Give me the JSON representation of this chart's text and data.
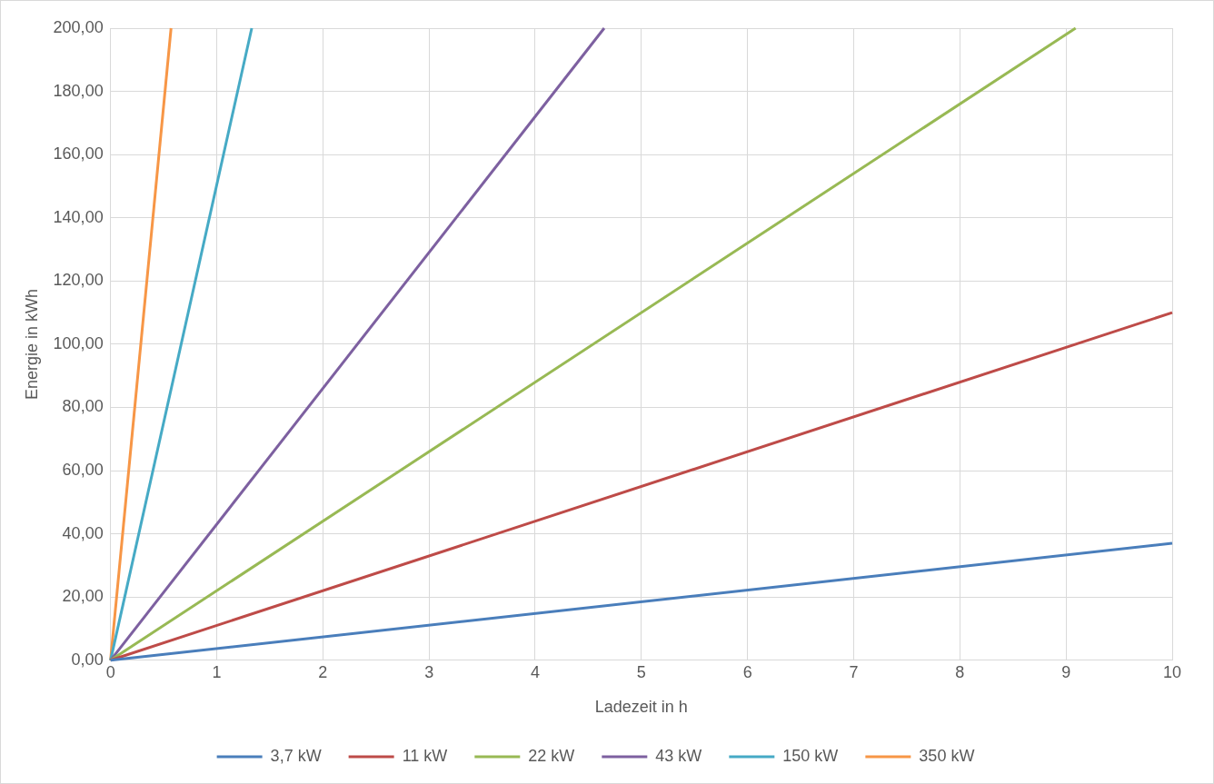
{
  "chart_data": {
    "type": "line",
    "xlabel": "Ladezeit in h",
    "ylabel": "Energie in kWh",
    "xlim": [
      0,
      10
    ],
    "xticks": [
      0,
      1,
      2,
      3,
      4,
      5,
      6,
      7,
      8,
      9,
      10
    ],
    "ylim": [
      0,
      200
    ],
    "yticks": [
      {
        "value": 0,
        "label": "0,00"
      },
      {
        "value": 20,
        "label": "20,00"
      },
      {
        "value": 40,
        "label": "40,00"
      },
      {
        "value": 60,
        "label": "60,00"
      },
      {
        "value": 80,
        "label": "80,00"
      },
      {
        "value": 100,
        "label": "100,00"
      },
      {
        "value": 120,
        "label": "120,00"
      },
      {
        "value": 140,
        "label": "140,00"
      },
      {
        "value": 160,
        "label": "160,00"
      },
      {
        "value": 180,
        "label": "180,00"
      },
      {
        "value": 200,
        "label": "200,00"
      }
    ],
    "grid": true,
    "legend": "bottom",
    "marker": "none",
    "line_style": "solid",
    "series": [
      {
        "name": "3,7 kW",
        "color": "#4a7ebb",
        "x": [
          0,
          10
        ],
        "values": [
          0,
          37
        ]
      },
      {
        "name": "11 kW",
        "color": "#be4b48",
        "x": [
          0,
          10
        ],
        "values": [
          0,
          110
        ]
      },
      {
        "name": "22 kW",
        "color": "#98b954",
        "x": [
          0,
          9.09
        ],
        "values": [
          0,
          200
        ]
      },
      {
        "name": "43 kW",
        "color": "#7d60a0",
        "x": [
          0,
          4.65
        ],
        "values": [
          0,
          200
        ]
      },
      {
        "name": "150 kW",
        "color": "#46aac5",
        "x": [
          0,
          1.33
        ],
        "values": [
          0,
          200
        ]
      },
      {
        "name": "350 kW",
        "color": "#f79646",
        "x": [
          0,
          0.57
        ],
        "values": [
          0,
          200
        ]
      }
    ]
  }
}
